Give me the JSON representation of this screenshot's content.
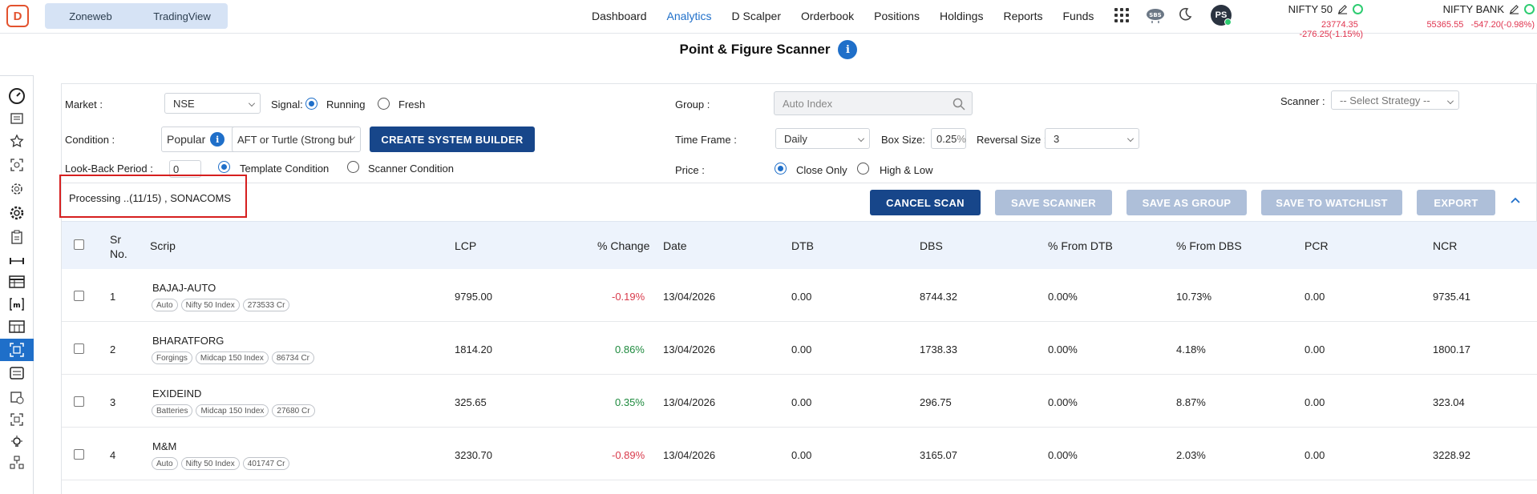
{
  "topbar": {
    "logo": "D",
    "segments": [
      "Zoneweb",
      "TradingView"
    ],
    "nav": [
      "Dashboard",
      "Analytics",
      "D Scalper",
      "Orderbook",
      "Positions",
      "Holdings",
      "Reports",
      "Funds"
    ],
    "active_nav": "Analytics",
    "user_initials": "PS",
    "indices": [
      {
        "name": "NIFTY 50",
        "value": "23774.35",
        "change": "-276.25(-1.15%)"
      },
      {
        "name": "NIFTY BANK",
        "value": "55365.55",
        "change": "-547.20(-0.98%)"
      }
    ]
  },
  "page": {
    "title": "Point & Figure Scanner",
    "info": "i"
  },
  "filters": {
    "market_label": "Market :",
    "market_value": "NSE",
    "signal_label": "Signal:",
    "signal_options": [
      "Running",
      "Fresh"
    ],
    "signal_selected": "Running",
    "group_label": "Group :",
    "group_placeholder": "Auto Index",
    "scanner_label": "Scanner :",
    "scanner_placeholder": "-- Select Strategy --",
    "condition_label": "Condition :",
    "condition_type": "Popular",
    "condition_value": "AFT or Turtle (Strong bul",
    "create_button": "CREATE SYSTEM BUILDER",
    "timeframe_label": "Time Frame :",
    "timeframe_value": "Daily",
    "boxsize_label": "Box Size:",
    "boxsize_value": "0.25",
    "boxsize_unit": "%",
    "reversal_label": "Reversal Size :",
    "reversal_value": "3",
    "lookback_label": "Look-Back Period :",
    "lookback_value": "0",
    "condition_modes": [
      "Template Condition",
      "Scanner Condition"
    ],
    "condition_mode_selected": "Template Condition",
    "price_label": "Price :",
    "price_options": [
      "Close Only",
      "High & Low"
    ],
    "price_selected": "Close Only"
  },
  "status": {
    "processing_text": "Processing ..(11/15) , SONACOMS",
    "buttons": {
      "cancel": "CANCEL SCAN",
      "save_scanner": "SAVE SCANNER",
      "save_group": "SAVE AS GROUP",
      "save_watchlist": "SAVE TO WATCHLIST",
      "export": "EXPORT"
    }
  },
  "table": {
    "headers": {
      "sr": "Sr",
      "sr2": "No.",
      "scrip": "Scrip",
      "lcp": "LCP",
      "pct_change": "% Change",
      "date": "Date",
      "dtb": "DTB",
      "dbs": "DBS",
      "from_dtb": "% From DTB",
      "from_dbs": "% From DBS",
      "pcr": "PCR",
      "ncr": "NCR"
    },
    "rows": [
      {
        "sr": "1",
        "scrip": "BAJAJ-AUTO",
        "tags": [
          "Auto",
          "Nifty 50 Index",
          "273533 Cr"
        ],
        "lcp": "9795.00",
        "change": "-0.19%",
        "date": "13/04/2026",
        "dtb": "0.00",
        "dbs": "8744.32",
        "from_dtb": "0.00%",
        "from_dbs": "10.73%",
        "pcr": "0.00",
        "ncr": "9735.41"
      },
      {
        "sr": "2",
        "scrip": "BHARATFORG",
        "tags": [
          "Forgings",
          "Midcap 150 Index",
          "86734 Cr"
        ],
        "lcp": "1814.20",
        "change": "0.86%",
        "date": "13/04/2026",
        "dtb": "0.00",
        "dbs": "1738.33",
        "from_dtb": "0.00%",
        "from_dbs": "4.18%",
        "pcr": "0.00",
        "ncr": "1800.17"
      },
      {
        "sr": "3",
        "scrip": "EXIDEIND",
        "tags": [
          "Batteries",
          "Midcap 150 Index",
          "27680 Cr"
        ],
        "lcp": "325.65",
        "change": "0.35%",
        "date": "13/04/2026",
        "dtb": "0.00",
        "dbs": "296.75",
        "from_dtb": "0.00%",
        "from_dbs": "8.87%",
        "pcr": "0.00",
        "ncr": "323.04"
      },
      {
        "sr": "4",
        "scrip": "M&M",
        "tags": [
          "Auto",
          "Nifty 50 Index",
          "401747 Cr"
        ],
        "lcp": "3230.70",
        "change": "-0.89%",
        "date": "13/04/2026",
        "dtb": "0.00",
        "dbs": "3165.07",
        "from_dtb": "0.00%",
        "from_dbs": "2.03%",
        "pcr": "0.00",
        "ncr": "3228.92"
      }
    ]
  },
  "colors": {
    "accent": "#1f6fc9",
    "primary_button": "#17468a",
    "disabled_button": "#aebfd9",
    "negative": "#d93b4c",
    "positive": "#1e8a3e",
    "highlight_box": "#d61f1f"
  }
}
